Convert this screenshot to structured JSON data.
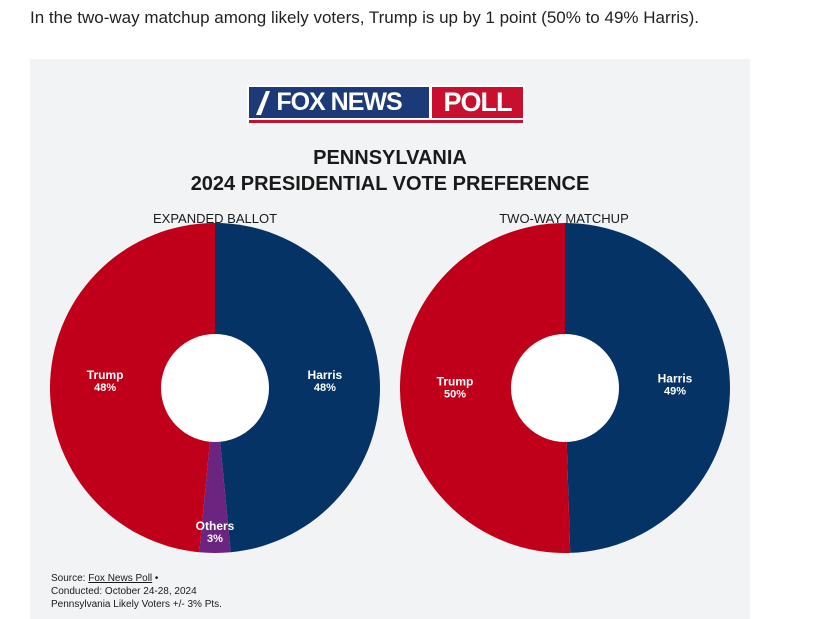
{
  "intro_text": "In the two-way matchup among likely voters, Trump is up by 1 point (50% to 49% Harris).",
  "logo": {
    "fox_news": "FOX NEWS",
    "poll": "POLL"
  },
  "colors": {
    "trump": "#c0001a",
    "harris": "#063366",
    "others": "#6b2480",
    "logo_blue": "#1d3a78",
    "logo_red": "#c8102e"
  },
  "chart_data": [
    {
      "type": "pie",
      "title": "PENNSYLVANIA",
      "subtitle": "2024 PRESIDENTIAL VOTE PREFERENCE",
      "label": "EXPANDED BALLOT",
      "slices": [
        {
          "name": "Harris",
          "value": 48,
          "label": "48%",
          "color": "#063366"
        },
        {
          "name": "Others",
          "value": 3,
          "label": "3%",
          "color": "#6b2480"
        },
        {
          "name": "Trump",
          "value": 48,
          "label": "48%",
          "color": "#c0001a"
        }
      ]
    },
    {
      "type": "pie",
      "label": "TWO-WAY MATCHUP",
      "slices": [
        {
          "name": "Harris",
          "value": 49,
          "label": "49%",
          "color": "#063366"
        },
        {
          "name": "Trump",
          "value": 50,
          "label": "50%",
          "color": "#c0001a"
        }
      ]
    }
  ],
  "source": {
    "prefix": "Source: ",
    "link": "Fox News Poll",
    "bullet": " •",
    "conducted": "Conducted: October 24-28, 2024",
    "population": "Pennsylvania Likely Voters +/- 3% Pts."
  }
}
